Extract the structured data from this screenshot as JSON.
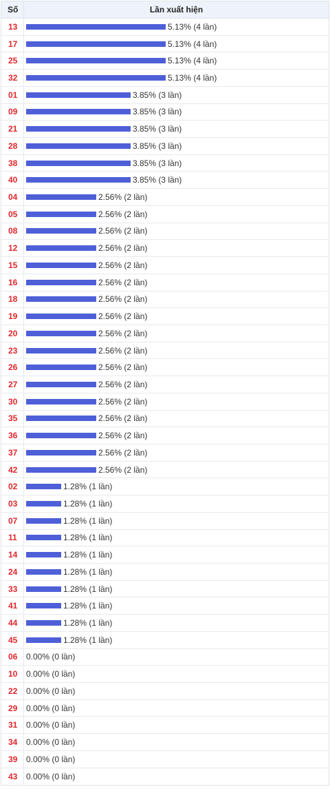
{
  "header": {
    "col_number": "Số",
    "col_freq": "Lần xuất hiện"
  },
  "colors": {
    "bar": "#4e5fd8",
    "number": "#e0262e"
  },
  "chart_data": {
    "type": "bar",
    "orientation": "horizontal",
    "unit_label": "lần",
    "rows": [
      {
        "number": "13",
        "percent": "5.13%",
        "count": 4
      },
      {
        "number": "17",
        "percent": "5.13%",
        "count": 4
      },
      {
        "number": "25",
        "percent": "5.13%",
        "count": 4
      },
      {
        "number": "32",
        "percent": "5.13%",
        "count": 4
      },
      {
        "number": "01",
        "percent": "3.85%",
        "count": 3
      },
      {
        "number": "09",
        "percent": "3.85%",
        "count": 3
      },
      {
        "number": "21",
        "percent": "3.85%",
        "count": 3
      },
      {
        "number": "28",
        "percent": "3.85%",
        "count": 3
      },
      {
        "number": "38",
        "percent": "3.85%",
        "count": 3
      },
      {
        "number": "40",
        "percent": "3.85%",
        "count": 3
      },
      {
        "number": "04",
        "percent": "2.56%",
        "count": 2
      },
      {
        "number": "05",
        "percent": "2.56%",
        "count": 2
      },
      {
        "number": "08",
        "percent": "2.56%",
        "count": 2
      },
      {
        "number": "12",
        "percent": "2.56%",
        "count": 2
      },
      {
        "number": "15",
        "percent": "2.56%",
        "count": 2
      },
      {
        "number": "16",
        "percent": "2.56%",
        "count": 2
      },
      {
        "number": "18",
        "percent": "2.56%",
        "count": 2
      },
      {
        "number": "19",
        "percent": "2.56%",
        "count": 2
      },
      {
        "number": "20",
        "percent": "2.56%",
        "count": 2
      },
      {
        "number": "23",
        "percent": "2.56%",
        "count": 2
      },
      {
        "number": "26",
        "percent": "2.56%",
        "count": 2
      },
      {
        "number": "27",
        "percent": "2.56%",
        "count": 2
      },
      {
        "number": "30",
        "percent": "2.56%",
        "count": 2
      },
      {
        "number": "35",
        "percent": "2.56%",
        "count": 2
      },
      {
        "number": "36",
        "percent": "2.56%",
        "count": 2
      },
      {
        "number": "37",
        "percent": "2.56%",
        "count": 2
      },
      {
        "number": "42",
        "percent": "2.56%",
        "count": 2
      },
      {
        "number": "02",
        "percent": "1.28%",
        "count": 1
      },
      {
        "number": "03",
        "percent": "1.28%",
        "count": 1
      },
      {
        "number": "07",
        "percent": "1.28%",
        "count": 1
      },
      {
        "number": "11",
        "percent": "1.28%",
        "count": 1
      },
      {
        "number": "14",
        "percent": "1.28%",
        "count": 1
      },
      {
        "number": "24",
        "percent": "1.28%",
        "count": 1
      },
      {
        "number": "33",
        "percent": "1.28%",
        "count": 1
      },
      {
        "number": "41",
        "percent": "1.28%",
        "count": 1
      },
      {
        "number": "44",
        "percent": "1.28%",
        "count": 1
      },
      {
        "number": "45",
        "percent": "1.28%",
        "count": 1
      },
      {
        "number": "06",
        "percent": "0.00%",
        "count": 0
      },
      {
        "number": "10",
        "percent": "0.00%",
        "count": 0
      },
      {
        "number": "22",
        "percent": "0.00%",
        "count": 0
      },
      {
        "number": "29",
        "percent": "0.00%",
        "count": 0
      },
      {
        "number": "31",
        "percent": "0.00%",
        "count": 0
      },
      {
        "number": "34",
        "percent": "0.00%",
        "count": 0
      },
      {
        "number": "39",
        "percent": "0.00%",
        "count": 0
      },
      {
        "number": "43",
        "percent": "0.00%",
        "count": 0
      }
    ]
  }
}
